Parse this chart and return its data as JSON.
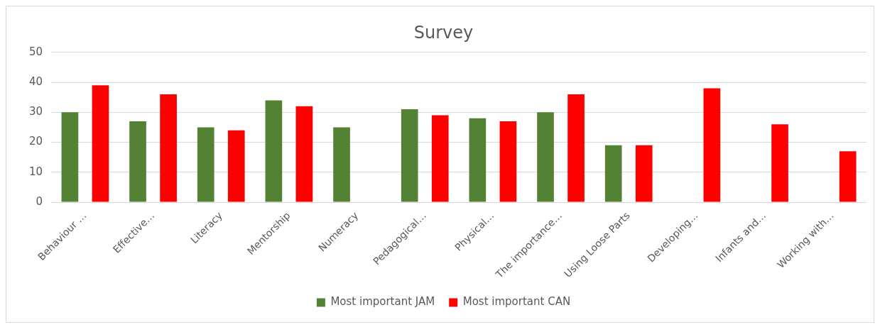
{
  "chart_data": {
    "type": "bar",
    "title": "Survey",
    "categories": [
      "Behaviour …",
      "Effective…",
      "Literacy",
      "Mentorship",
      "Numeracy",
      "Pedagogical…",
      "Physical…",
      "The importance…",
      "Using Loose Parts",
      "Developing…",
      "Infants and…",
      "Working with…"
    ],
    "series": [
      {
        "name": "Most important JAM",
        "color": "#548235",
        "values": [
          30,
          27,
          25,
          34,
          25,
          31,
          28,
          30,
          19,
          null,
          null,
          null
        ]
      },
      {
        "name": "Most important CAN",
        "color": "#ff0000",
        "values": [
          39,
          36,
          24,
          32,
          null,
          29,
          27,
          36,
          19,
          38,
          26,
          17
        ]
      }
    ],
    "ylim": [
      0,
      50
    ],
    "yticks": [
      0,
      10,
      20,
      30,
      40,
      50
    ],
    "grid": "y",
    "legend": "bottom"
  }
}
